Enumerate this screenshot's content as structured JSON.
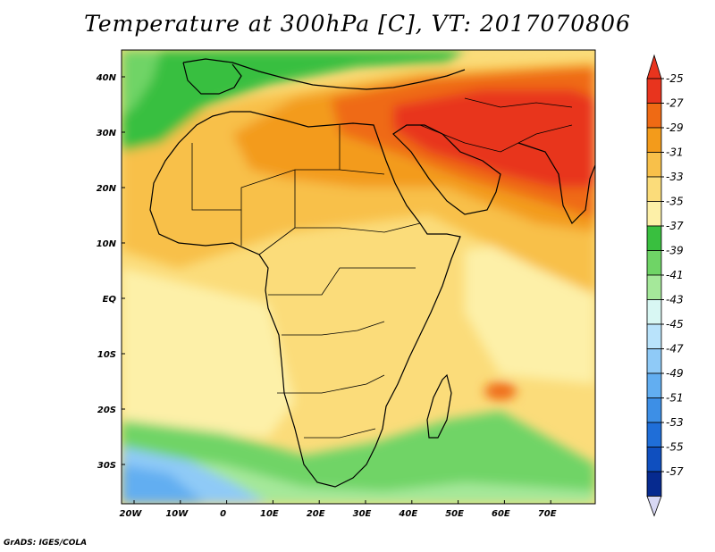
{
  "title": "Temperature at 300hPa [C], VT: 2017070806",
  "credit": "GrADS: IGES/COLA",
  "lat_labels": [
    "40N",
    "30N",
    "20N",
    "10N",
    "EQ",
    "10S",
    "20S",
    "30S"
  ],
  "lon_labels": [
    "20W",
    "10W",
    "0",
    "10E",
    "20E",
    "30E",
    "40E",
    "50E",
    "60E",
    "70E"
  ],
  "colorbar": {
    "labels": [
      "-25",
      "-27",
      "-29",
      "-31",
      "-33",
      "-35",
      "-37",
      "-39",
      "-41",
      "-43",
      "-45",
      "-47",
      "-49",
      "-51",
      "-53",
      "-55",
      "-57"
    ],
    "colors": [
      "#e8341e",
      "#ef6a14",
      "#f39b1b",
      "#f8c04a",
      "#fbdc7a",
      "#fdf0a8",
      "#39bf3f",
      "#6fd466",
      "#a5e89a",
      "#d8f7f3",
      "#b9e3fb",
      "#8fcaf7",
      "#62aef1",
      "#3d8fe6",
      "#1f6ed8",
      "#0f4fbf",
      "#062a8f"
    ],
    "upper_triangle_color": "#e8341e",
    "lower_triangle_color": "#d8d8f4"
  },
  "map_colors": {
    "land_lines": "#000000",
    "base": "#fbdc7a",
    "pale": "#fdf0a8",
    "orange_light": "#f8c04a",
    "orange": "#f39b1b",
    "orange_dark": "#ef6a14",
    "red": "#e8341e",
    "green": "#39bf3f",
    "green_light": "#6fd466",
    "green_pale": "#a5e89a",
    "blue_light": "#8fcaf7",
    "blue": "#62aef1"
  }
}
